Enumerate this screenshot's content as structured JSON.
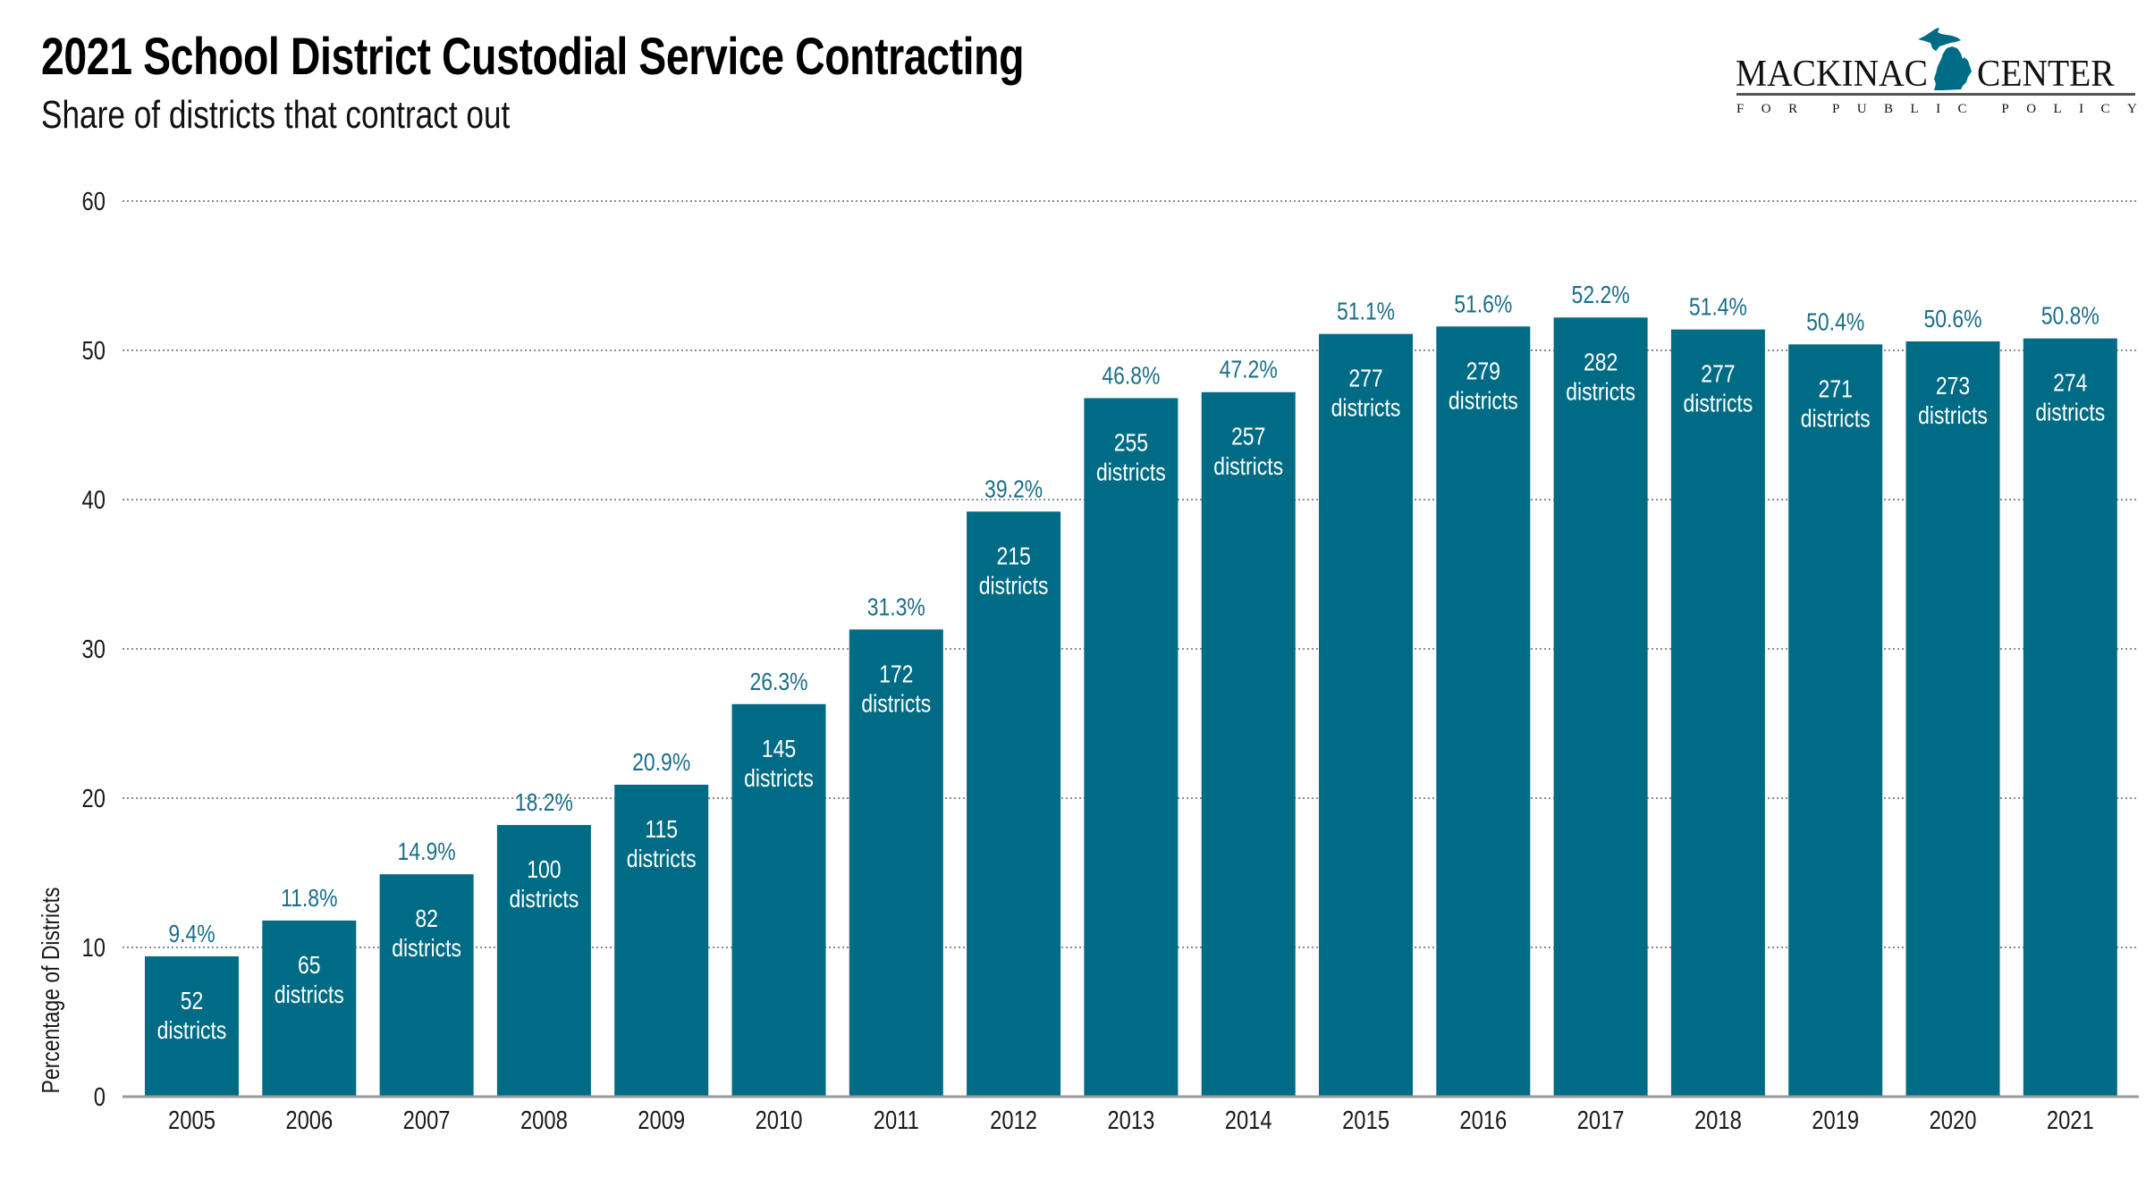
{
  "header": {
    "title": "2021 School District Custodial Service Contracting",
    "subtitle": "Share of districts that contract out"
  },
  "logo": {
    "word_left": "MACKINAC",
    "word_right": "CENTER",
    "tagline": [
      "F",
      "O",
      "R",
      " ",
      "P",
      "U",
      "B",
      "L",
      "I",
      "C",
      " ",
      "P",
      "O",
      "L",
      "I",
      "C",
      "Y"
    ],
    "icon": "michigan-map-icon",
    "icon_color": "#006B85"
  },
  "colors": {
    "bar": "#006B85",
    "pct_label": "#1B6E88",
    "inner_label": "#FFFFFF",
    "grid": "#8C8C8C",
    "axis": "#999999"
  },
  "chart_data": {
    "type": "bar",
    "title": "2021 School District Custodial Service Contracting",
    "subtitle": "Share of districts that contract out",
    "xlabel": "",
    "ylabel": "Percentage of Districts",
    "ylim": [
      0,
      60
    ],
    "yticks": [
      0,
      10,
      20,
      30,
      40,
      50,
      60
    ],
    "grid": true,
    "grid_style": "dotted",
    "legend": "none",
    "categories": [
      "2005",
      "2006",
      "2007",
      "2008",
      "2009",
      "2010",
      "2011",
      "2012",
      "2013",
      "2014",
      "2015",
      "2016",
      "2017",
      "2018",
      "2019",
      "2020",
      "2021"
    ],
    "values": [
      9.4,
      11.8,
      14.9,
      18.2,
      20.9,
      26.3,
      31.3,
      39.2,
      46.8,
      47.2,
      51.1,
      51.6,
      52.2,
      51.4,
      50.4,
      50.6,
      50.8
    ],
    "value_labels": [
      "9.4%",
      "11.8%",
      "14.9%",
      "18.2%",
      "20.9%",
      "26.3%",
      "31.3%",
      "39.2%",
      "46.8%",
      "47.2%",
      "51.1%",
      "51.6%",
      "52.2%",
      "51.4%",
      "50.4%",
      "50.6%",
      "50.8%"
    ],
    "district_counts": [
      52,
      65,
      82,
      100,
      115,
      145,
      172,
      215,
      255,
      257,
      277,
      279,
      282,
      277,
      271,
      273,
      274
    ],
    "district_suffix": "districts"
  }
}
